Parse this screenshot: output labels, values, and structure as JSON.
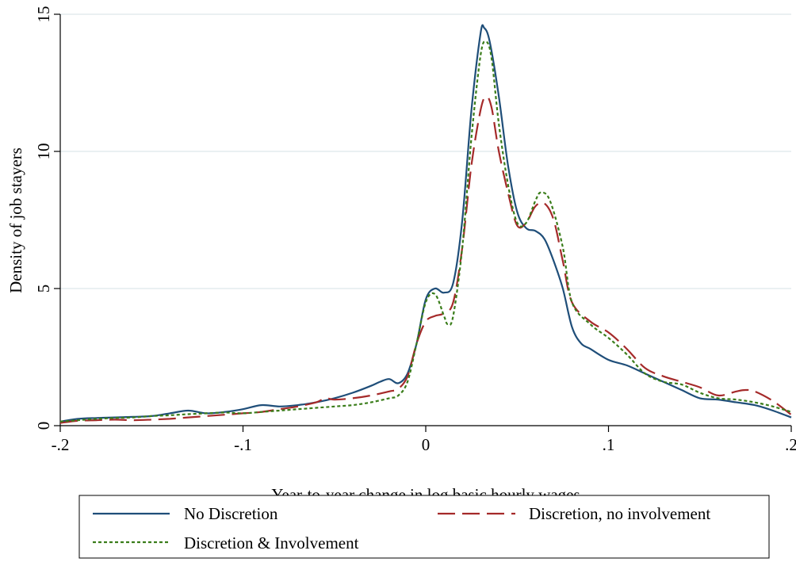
{
  "chart_data": {
    "type": "line",
    "xlabel": "Year-to-year change in log basic hourly wages",
    "ylabel": "Density of job stayers",
    "xlim": [
      -0.2,
      0.2
    ],
    "ylim": [
      0,
      15
    ],
    "xticks": [
      -0.2,
      -0.1,
      0,
      0.1,
      0.2
    ],
    "xtick_labels": [
      "-.2",
      "-.1",
      "0",
      ".1",
      ".2"
    ],
    "yticks": [
      0,
      5,
      10,
      15
    ],
    "ytick_labels": [
      "0",
      "5",
      "10",
      "15"
    ],
    "grid": "horizontal",
    "legend_position": "bottom",
    "series": [
      {
        "name": "No Discretion",
        "color": "#1f4e79",
        "style": "solid",
        "points": [
          [
            -0.2,
            0.15
          ],
          [
            -0.19,
            0.25
          ],
          [
            -0.18,
            0.28
          ],
          [
            -0.17,
            0.3
          ],
          [
            -0.16,
            0.32
          ],
          [
            -0.15,
            0.35
          ],
          [
            -0.14,
            0.45
          ],
          [
            -0.13,
            0.55
          ],
          [
            -0.12,
            0.45
          ],
          [
            -0.11,
            0.5
          ],
          [
            -0.1,
            0.6
          ],
          [
            -0.09,
            0.75
          ],
          [
            -0.08,
            0.7
          ],
          [
            -0.07,
            0.75
          ],
          [
            -0.06,
            0.85
          ],
          [
            -0.05,
            1.0
          ],
          [
            -0.04,
            1.2
          ],
          [
            -0.03,
            1.45
          ],
          [
            -0.025,
            1.6
          ],
          [
            -0.02,
            1.7
          ],
          [
            -0.015,
            1.55
          ],
          [
            -0.01,
            1.9
          ],
          [
            -0.005,
            3.0
          ],
          [
            0,
            4.6
          ],
          [
            0.005,
            5.0
          ],
          [
            0.01,
            4.85
          ],
          [
            0.015,
            5.2
          ],
          [
            0.02,
            7.5
          ],
          [
            0.025,
            11.5
          ],
          [
            0.03,
            14.3
          ],
          [
            0.032,
            14.5
          ],
          [
            0.035,
            14.0
          ],
          [
            0.04,
            12.0
          ],
          [
            0.045,
            9.5
          ],
          [
            0.05,
            7.8
          ],
          [
            0.055,
            7.2
          ],
          [
            0.06,
            7.1
          ],
          [
            0.065,
            6.8
          ],
          [
            0.07,
            6.0
          ],
          [
            0.075,
            5.0
          ],
          [
            0.08,
            3.6
          ],
          [
            0.085,
            3.0
          ],
          [
            0.09,
            2.8
          ],
          [
            0.1,
            2.4
          ],
          [
            0.11,
            2.2
          ],
          [
            0.12,
            1.9
          ],
          [
            0.13,
            1.6
          ],
          [
            0.14,
            1.3
          ],
          [
            0.15,
            1.0
          ],
          [
            0.16,
            0.95
          ],
          [
            0.17,
            0.85
          ],
          [
            0.18,
            0.75
          ],
          [
            0.19,
            0.55
          ],
          [
            0.2,
            0.3
          ]
        ]
      },
      {
        "name": "Discretion, no involvement",
        "color": "#a52a2a",
        "style": "longdash",
        "points": [
          [
            -0.2,
            0.1
          ],
          [
            -0.19,
            0.18
          ],
          [
            -0.18,
            0.2
          ],
          [
            -0.17,
            0.22
          ],
          [
            -0.16,
            0.2
          ],
          [
            -0.15,
            0.22
          ],
          [
            -0.14,
            0.25
          ],
          [
            -0.13,
            0.3
          ],
          [
            -0.12,
            0.35
          ],
          [
            -0.11,
            0.4
          ],
          [
            -0.1,
            0.45
          ],
          [
            -0.09,
            0.5
          ],
          [
            -0.08,
            0.6
          ],
          [
            -0.07,
            0.7
          ],
          [
            -0.06,
            0.85
          ],
          [
            -0.055,
            1.0
          ],
          [
            -0.05,
            0.95
          ],
          [
            -0.04,
            1.0
          ],
          [
            -0.03,
            1.1
          ],
          [
            -0.02,
            1.25
          ],
          [
            -0.015,
            1.35
          ],
          [
            -0.01,
            1.8
          ],
          [
            -0.005,
            3.0
          ],
          [
            0,
            3.8
          ],
          [
            0.005,
            4.0
          ],
          [
            0.01,
            4.1
          ],
          [
            0.015,
            4.5
          ],
          [
            0.02,
            6.5
          ],
          [
            0.025,
            9.5
          ],
          [
            0.03,
            11.5
          ],
          [
            0.033,
            12.0
          ],
          [
            0.036,
            11.6
          ],
          [
            0.04,
            10.0
          ],
          [
            0.045,
            8.5
          ],
          [
            0.05,
            7.3
          ],
          [
            0.055,
            7.4
          ],
          [
            0.06,
            8.0
          ],
          [
            0.065,
            8.1
          ],
          [
            0.07,
            7.5
          ],
          [
            0.075,
            6.0
          ],
          [
            0.08,
            4.5
          ],
          [
            0.09,
            3.8
          ],
          [
            0.1,
            3.4
          ],
          [
            0.11,
            2.8
          ],
          [
            0.12,
            2.1
          ],
          [
            0.13,
            1.8
          ],
          [
            0.14,
            1.6
          ],
          [
            0.15,
            1.4
          ],
          [
            0.16,
            1.1
          ],
          [
            0.17,
            1.25
          ],
          [
            0.175,
            1.3
          ],
          [
            0.18,
            1.25
          ],
          [
            0.19,
            0.9
          ],
          [
            0.2,
            0.4
          ]
        ]
      },
      {
        "name": "Discretion & Involvement",
        "color": "#3a7d1a",
        "style": "shortdash",
        "points": [
          [
            -0.2,
            0.15
          ],
          [
            -0.19,
            0.2
          ],
          [
            -0.18,
            0.25
          ],
          [
            -0.17,
            0.28
          ],
          [
            -0.16,
            0.3
          ],
          [
            -0.15,
            0.35
          ],
          [
            -0.14,
            0.38
          ],
          [
            -0.13,
            0.42
          ],
          [
            -0.12,
            0.45
          ],
          [
            -0.11,
            0.48
          ],
          [
            -0.1,
            0.45
          ],
          [
            -0.09,
            0.5
          ],
          [
            -0.08,
            0.55
          ],
          [
            -0.07,
            0.6
          ],
          [
            -0.06,
            0.65
          ],
          [
            -0.05,
            0.7
          ],
          [
            -0.04,
            0.75
          ],
          [
            -0.03,
            0.85
          ],
          [
            -0.02,
            1.0
          ],
          [
            -0.015,
            1.1
          ],
          [
            -0.01,
            1.6
          ],
          [
            -0.005,
            3.0
          ],
          [
            0,
            4.5
          ],
          [
            0.005,
            4.8
          ],
          [
            0.01,
            4.0
          ],
          [
            0.012,
            3.7
          ],
          [
            0.015,
            4.0
          ],
          [
            0.02,
            6.5
          ],
          [
            0.025,
            10.5
          ],
          [
            0.03,
            13.5
          ],
          [
            0.033,
            14.0
          ],
          [
            0.036,
            13.4
          ],
          [
            0.04,
            11.0
          ],
          [
            0.045,
            8.8
          ],
          [
            0.05,
            7.4
          ],
          [
            0.055,
            7.4
          ],
          [
            0.06,
            8.2
          ],
          [
            0.063,
            8.5
          ],
          [
            0.068,
            8.2
          ],
          [
            0.075,
            6.5
          ],
          [
            0.08,
            4.5
          ],
          [
            0.09,
            3.7
          ],
          [
            0.1,
            3.2
          ],
          [
            0.11,
            2.6
          ],
          [
            0.12,
            1.9
          ],
          [
            0.13,
            1.6
          ],
          [
            0.14,
            1.5
          ],
          [
            0.15,
            1.2
          ],
          [
            0.16,
            1.0
          ],
          [
            0.17,
            0.95
          ],
          [
            0.18,
            0.85
          ],
          [
            0.19,
            0.7
          ],
          [
            0.2,
            0.5
          ]
        ]
      }
    ]
  }
}
